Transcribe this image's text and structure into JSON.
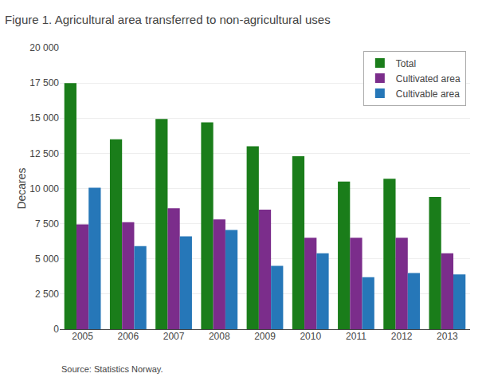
{
  "chart_data": {
    "type": "bar",
    "title": "Figure 1. Agricultural area transferred to non-agricultural uses",
    "ylabel": "Decares",
    "annotations": [
      "Source: Statistics Norway."
    ],
    "categories": [
      "2005",
      "2006",
      "2007",
      "2008",
      "2009",
      "2010",
      "2011",
      "2012",
      "2013"
    ],
    "series": [
      {
        "name": "Total",
        "color": "#1a7d1a",
        "values": [
          17500,
          13500,
          14950,
          14700,
          13000,
          12300,
          10500,
          10700,
          9400
        ]
      },
      {
        "name": "Cultivated area",
        "color": "#7b2d8b",
        "values": [
          7450,
          7600,
          8600,
          7800,
          8500,
          6500,
          6500,
          6500,
          5400
        ]
      },
      {
        "name": "Cultivable area",
        "color": "#2677b8",
        "values": [
          10050,
          5900,
          6600,
          7050,
          4500,
          5400,
          3700,
          4000,
          3900
        ]
      }
    ],
    "ylim": [
      0,
      20000
    ],
    "yticks": [
      0,
      {
        "value": 2500,
        "label": "2 500"
      },
      {
        "value": 5000,
        "label": "5 000"
      },
      {
        "value": 7500,
        "label": "7 500"
      },
      {
        "value": 10000,
        "label": "10 000"
      },
      {
        "value": 12500,
        "label": "12 500"
      },
      {
        "value": 15000,
        "label": "15 000"
      },
      {
        "value": 17500,
        "label": "17 500"
      },
      {
        "value": 20000,
        "label": "20 000"
      }
    ],
    "grid": true,
    "legend": "upper right"
  }
}
